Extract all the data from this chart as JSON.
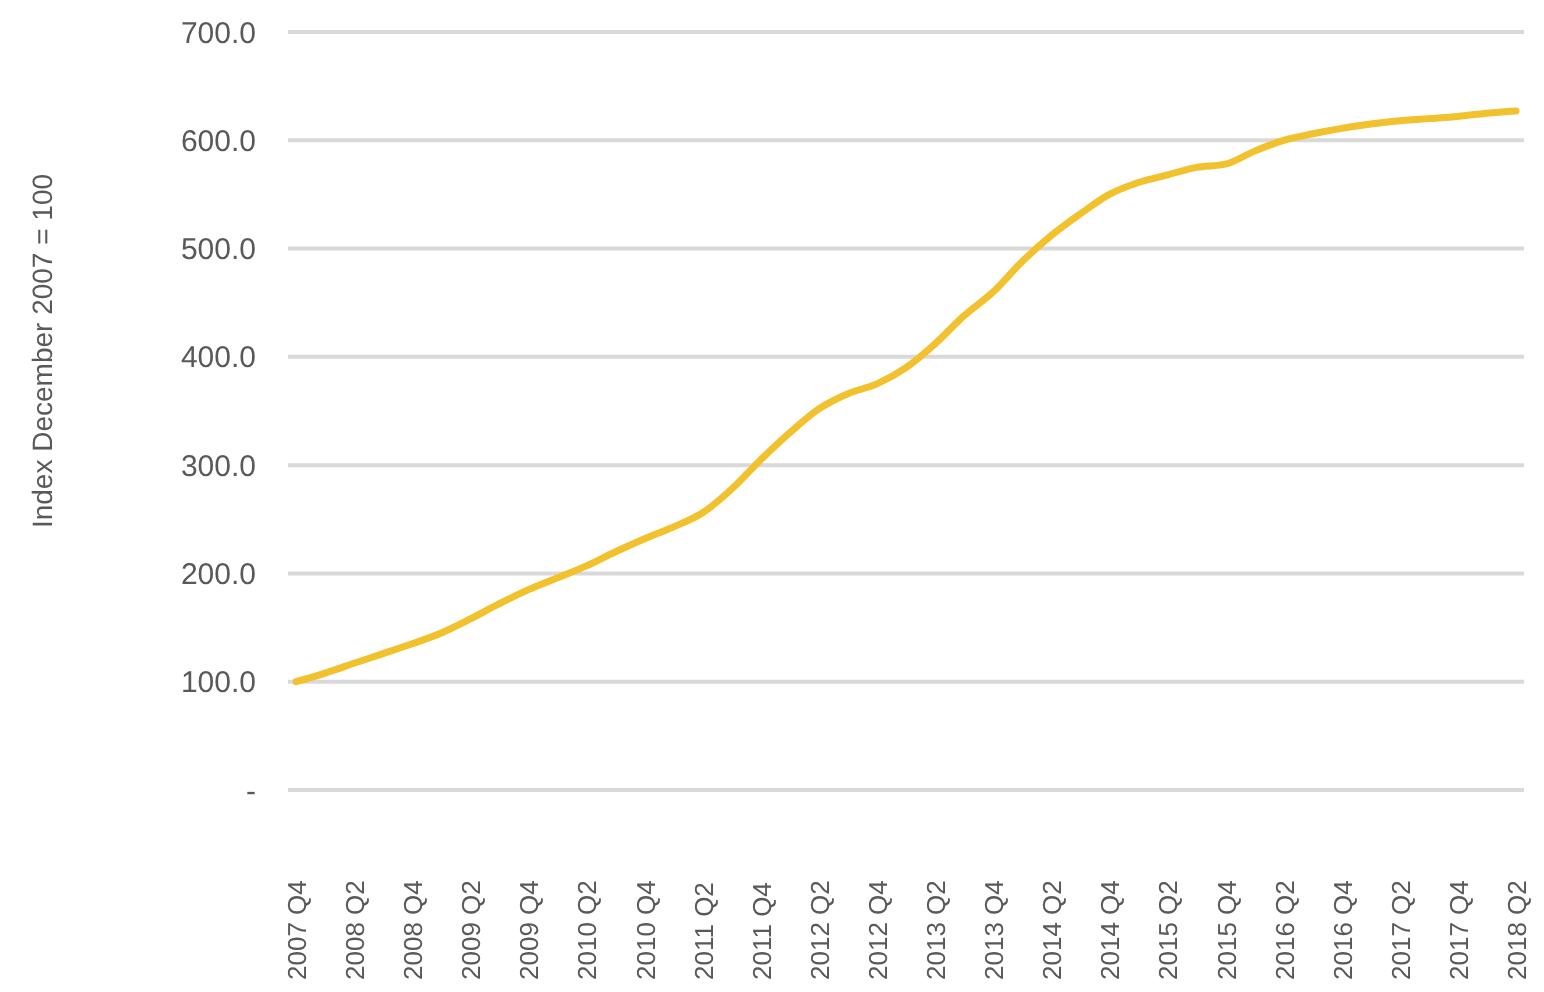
{
  "chart_data": {
    "type": "line",
    "ylabel": "Index December 2007 = 100",
    "categories": [
      "2007 Q4",
      null,
      "2008 Q2",
      null,
      "2008 Q4",
      null,
      "2009 Q2",
      null,
      "2009 Q4",
      null,
      "2010 Q2",
      null,
      "2010 Q4",
      null,
      "2011 Q2",
      null,
      "2011 Q4",
      null,
      "2012 Q2",
      null,
      "2012 Q4",
      null,
      "2013 Q2",
      null,
      "2013 Q4",
      null,
      "2014 Q2",
      null,
      "2014 Q4",
      null,
      "2015 Q2",
      null,
      "2015 Q4",
      null,
      "2016 Q2",
      null,
      "2016 Q4",
      null,
      "2017 Q2",
      null,
      "2017 Q4",
      null,
      "2018 Q2"
    ],
    "series": [
      {
        "color": "#f2c12e",
        "values": [
          100,
          108,
          117,
          126,
          135,
          145,
          158,
          172,
          185,
          196,
          207,
          220,
          232,
          243,
          256,
          278,
          305,
          330,
          352,
          366,
          375,
          390,
          412,
          438,
          460,
          488,
          512,
          532,
          550,
          561,
          568,
          575,
          578,
          590,
          600,
          606,
          611,
          615,
          618,
          620,
          622,
          625,
          627
        ]
      }
    ],
    "ylim": [
      0,
      700
    ],
    "yticks": [
      {
        "value": 0,
        "label": "-"
      },
      {
        "value": 100,
        "label": "100.0"
      },
      {
        "value": 200,
        "label": "200.0"
      },
      {
        "value": 300,
        "label": "300.0"
      },
      {
        "value": 400,
        "label": "400.0"
      },
      {
        "value": 500,
        "label": "500.0"
      },
      {
        "value": 600,
        "label": "600.0"
      },
      {
        "value": 700,
        "label": "700.0"
      }
    ],
    "grid": "y",
    "marker": "none",
    "line_style": "solid"
  }
}
